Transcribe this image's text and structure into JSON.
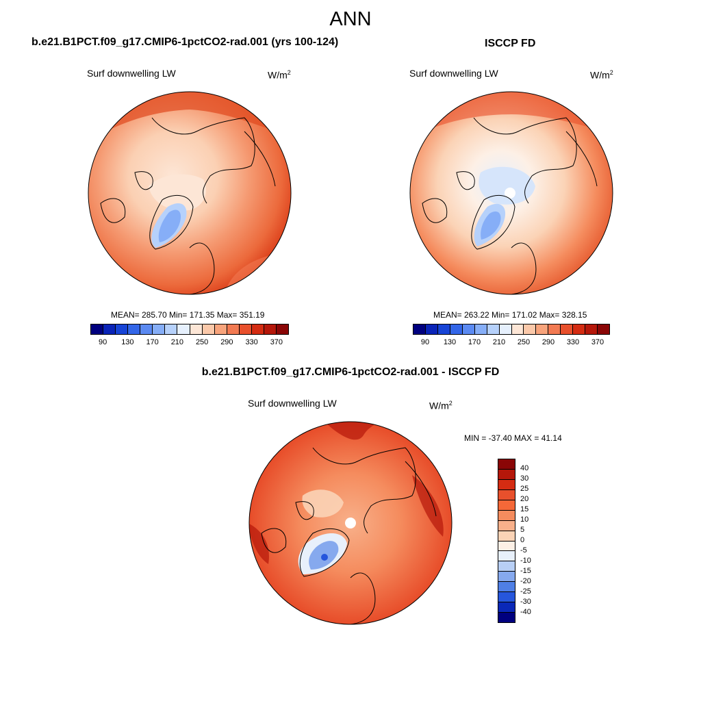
{
  "figure": {
    "season": "ANN"
  },
  "panels": [
    {
      "title": "b.e21.B1PCT.f09_g17.CMIP6-1pctCO2-rad.001 (yrs 100-124)",
      "variable": "Surf downwelling LW",
      "units_base": "W/m",
      "units_exp": "2",
      "stats": "MEAN= 285.70  Min= 171.35  Max= 351.19"
    },
    {
      "title": "ISCCP FD",
      "variable": "Surf downwelling LW",
      "units_base": "W/m",
      "units_exp": "2",
      "stats": "MEAN= 263.22  Min= 171.02  Max= 328.15"
    },
    {
      "title": "b.e21.B1PCT.f09_g17.CMIP6-1pctCO2-rad.001 - ISCCP FD",
      "variable": "Surf downwelling LW",
      "units_base": "W/m",
      "units_exp": "2",
      "stats": "MIN = -37.40 MAX =  41.14"
    }
  ],
  "colorbar_abs": {
    "tick_labels": [
      "90",
      "130",
      "170",
      "210",
      "250",
      "290",
      "330",
      "370"
    ],
    "colors": [
      "#00007f",
      "#0a24b8",
      "#1744d6",
      "#3366e8",
      "#5b8af2",
      "#86aef7",
      "#b6d1fb",
      "#e6f0fd",
      "#fde6d6",
      "#fbc9aa",
      "#f8a47c",
      "#f27a52",
      "#e8502c",
      "#d42c12",
      "#b5170a",
      "#8a0606"
    ]
  },
  "colorbar_diff": {
    "tick_labels": [
      "40",
      "30",
      "25",
      "20",
      "15",
      "10",
      "5",
      "0",
      "-5",
      "-10",
      "-15",
      "-20",
      "-25",
      "-30",
      "-40"
    ],
    "colors": [
      "#8a0606",
      "#b5170a",
      "#d42c12",
      "#e8502c",
      "#f56838",
      "#f58c5e",
      "#f8b08a",
      "#fbd3b6",
      "#fdf0e6",
      "#e8f0fb",
      "#b8cff5",
      "#86a9ee",
      "#4f7fe6",
      "#2656dc",
      "#0a28b8",
      "#00007f"
    ]
  },
  "chart_data": {
    "type": "map",
    "projection": "north polar stereographic",
    "season": "ANN",
    "maps": [
      {
        "name": "b.e21.B1PCT.f09_g17.CMIP6-1pctCO2-rad.001 (yrs 100-124)",
        "variable": "Surf downwelling LW",
        "units": "W/m2",
        "mean": 285.7,
        "min": 171.35,
        "max": 351.19,
        "contour_levels": [
          90,
          110,
          130,
          150,
          170,
          190,
          210,
          230,
          250,
          270,
          290,
          310,
          330,
          350,
          370
        ]
      },
      {
        "name": "ISCCP FD",
        "variable": "Surf downwelling LW",
        "units": "W/m2",
        "mean": 263.22,
        "min": 171.02,
        "max": 328.15,
        "contour_levels": [
          90,
          110,
          130,
          150,
          170,
          190,
          210,
          230,
          250,
          270,
          290,
          310,
          330,
          350,
          370
        ]
      },
      {
        "name": "b.e21.B1PCT.f09_g17.CMIP6-1pctCO2-rad.001 - ISCCP FD",
        "variable": "Surf downwelling LW",
        "units": "W/m2",
        "min": -37.4,
        "max": 41.14,
        "contour_levels": [
          -40,
          -30,
          -25,
          -20,
          -15,
          -10,
          -5,
          0,
          5,
          10,
          15,
          20,
          25,
          30,
          40
        ]
      }
    ]
  }
}
